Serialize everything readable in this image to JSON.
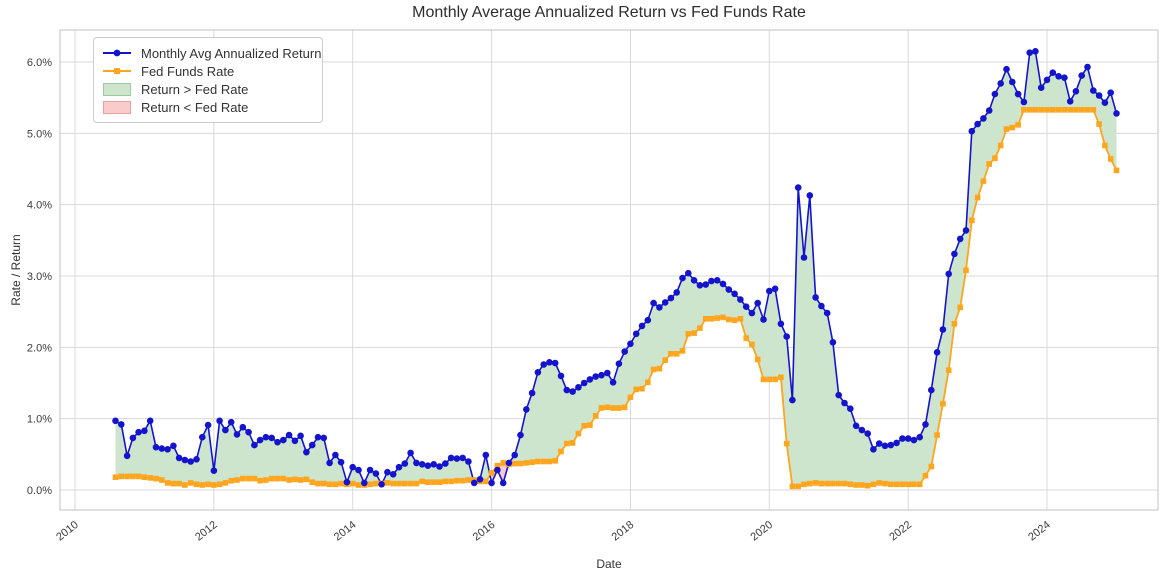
{
  "title": "Monthly Average Annualized Return vs Fed Funds Rate",
  "xlabel": "Date",
  "ylabel": "Rate / Return",
  "legend": {
    "items": [
      {
        "label": "Monthly Avg Annualized Return",
        "type": "line",
        "marker": "circle",
        "color": "#1414cc"
      },
      {
        "label": "Fed Funds Rate",
        "type": "line",
        "marker": "square",
        "color": "#ffa51e"
      },
      {
        "label": "Return > Fed Rate",
        "type": "patch",
        "fill": "#cde4cd",
        "edge": "#a3c9a3"
      },
      {
        "label": "Return < Fed Rate",
        "type": "patch",
        "fill": "#f9cbcb",
        "edge": "#e9a2a2"
      }
    ]
  },
  "colors": {
    "return_line": "#1414cc",
    "fed_funds_line": "#ffa51e",
    "fill_above": "#cde4cd",
    "fill_below": "#f9cbcb",
    "grid": "#d9d9d9",
    "frame": "#cccccc",
    "tick_text": "#3b3b3b",
    "background": "#ffffff"
  },
  "chart_data": {
    "type": "line",
    "title": "Monthly Average Annualized Return vs Fed Funds Rate",
    "xlabel": "Date",
    "ylabel": "Rate / Return",
    "x_unit": "month",
    "start": "2010-07",
    "end": "2024-12",
    "grid": true,
    "legend_position": "upper left",
    "ylim": [
      -0.28,
      6.45
    ],
    "yticks": [
      "0.0%",
      "1.0%",
      "2.0%",
      "3.0%",
      "4.0%",
      "5.0%",
      "6.0%"
    ],
    "ytick_values": [
      0,
      1,
      2,
      3,
      4,
      5,
      6
    ],
    "xticks": [
      "2010",
      "2012",
      "2014",
      "2016",
      "2018",
      "2020",
      "2022",
      "2024"
    ],
    "xtick_values": [
      2010,
      2012,
      2014,
      2016,
      2018,
      2020,
      2022,
      2024
    ],
    "fills": [
      {
        "label": "Return > Fed Rate",
        "condition": "return > fed_rate",
        "color": "#cde4cd"
      },
      {
        "label": "Return < Fed Rate",
        "condition": "return < fed_rate",
        "color": "#f9cbcb"
      }
    ],
    "series": [
      {
        "name": "Monthly Avg Annualized Return",
        "color": "#1414cc",
        "marker": "circle",
        "unit": "%",
        "values": [
          0.97,
          0.92,
          0.48,
          0.73,
          0.81,
          0.83,
          0.97,
          0.6,
          0.58,
          0.57,
          0.62,
          0.45,
          0.42,
          0.4,
          0.43,
          0.74,
          0.91,
          0.27,
          0.97,
          0.84,
          0.95,
          0.78,
          0.88,
          0.81,
          0.63,
          0.7,
          0.74,
          0.73,
          0.67,
          0.7,
          0.77,
          0.69,
          0.76,
          0.53,
          0.63,
          0.74,
          0.73,
          0.38,
          0.49,
          0.39,
          0.11,
          0.32,
          0.28,
          0.1,
          0.28,
          0.23,
          0.08,
          0.25,
          0.22,
          0.32,
          0.37,
          0.52,
          0.38,
          0.36,
          0.34,
          0.36,
          0.33,
          0.37,
          0.45,
          0.44,
          0.45,
          0.4,
          0.1,
          0.15,
          0.49,
          0.1,
          0.28,
          0.1,
          0.38,
          0.49,
          0.77,
          1.13,
          1.36,
          1.65,
          1.76,
          1.79,
          1.78,
          1.6,
          1.4,
          1.38,
          1.44,
          1.5,
          1.55,
          1.59,
          1.61,
          1.64,
          1.51,
          1.77,
          1.94,
          2.05,
          2.19,
          2.3,
          2.38,
          2.62,
          2.56,
          2.63,
          2.69,
          2.77,
          2.97,
          3.04,
          2.94,
          2.87,
          2.88,
          2.93,
          2.94,
          2.89,
          2.81,
          2.75,
          2.67,
          2.57,
          2.48,
          2.62,
          2.39,
          2.79,
          2.82,
          2.33,
          2.15,
          1.26,
          4.24,
          3.26,
          4.13,
          2.7,
          2.58,
          2.48,
          2.07,
          1.33,
          1.22,
          1.14,
          0.9,
          0.84,
          0.79,
          0.57,
          0.65,
          0.62,
          0.63,
          0.66,
          0.72,
          0.72,
          0.7,
          0.74,
          0.92,
          1.4,
          1.93,
          2.25,
          3.03,
          3.31,
          3.52,
          3.64,
          5.03,
          5.13,
          5.21,
          5.32,
          5.55,
          5.7,
          5.9,
          5.72,
          5.55,
          5.44,
          6.13,
          6.15,
          5.64,
          5.75,
          5.85,
          5.8,
          5.78,
          5.45,
          5.59,
          5.81,
          5.93,
          5.6,
          5.53,
          5.43,
          5.57,
          5.28
        ]
      },
      {
        "name": "Fed Funds Rate",
        "color": "#ffa51e",
        "marker": "square",
        "unit": "%",
        "values": [
          0.18,
          0.19,
          0.19,
          0.19,
          0.19,
          0.18,
          0.17,
          0.16,
          0.14,
          0.1,
          0.09,
          0.09,
          0.07,
          0.1,
          0.08,
          0.07,
          0.08,
          0.07,
          0.08,
          0.1,
          0.13,
          0.14,
          0.16,
          0.16,
          0.16,
          0.13,
          0.14,
          0.16,
          0.16,
          0.16,
          0.14,
          0.15,
          0.14,
          0.15,
          0.11,
          0.09,
          0.09,
          0.08,
          0.08,
          0.09,
          0.08,
          0.09,
          0.07,
          0.07,
          0.08,
          0.09,
          0.09,
          0.1,
          0.09,
          0.09,
          0.09,
          0.09,
          0.09,
          0.12,
          0.11,
          0.11,
          0.11,
          0.12,
          0.12,
          0.13,
          0.13,
          0.14,
          0.14,
          0.12,
          0.12,
          0.24,
          0.34,
          0.38,
          0.36,
          0.37,
          0.37,
          0.38,
          0.39,
          0.4,
          0.4,
          0.4,
          0.41,
          0.54,
          0.65,
          0.66,
          0.79,
          0.9,
          0.91,
          1.04,
          1.15,
          1.16,
          1.15,
          1.15,
          1.16,
          1.3,
          1.41,
          1.42,
          1.51,
          1.69,
          1.7,
          1.82,
          1.91,
          1.91,
          1.95,
          2.19,
          2.2,
          2.27,
          2.4,
          2.4,
          2.41,
          2.42,
          2.39,
          2.38,
          2.4,
          2.13,
          2.04,
          1.83,
          1.55,
          1.55,
          1.55,
          1.58,
          0.65,
          0.05,
          0.05,
          0.08,
          0.09,
          0.1,
          0.09,
          0.09,
          0.09,
          0.09,
          0.09,
          0.08,
          0.07,
          0.07,
          0.06,
          0.08,
          0.1,
          0.09,
          0.08,
          0.08,
          0.08,
          0.08,
          0.08,
          0.08,
          0.2,
          0.33,
          0.77,
          1.21,
          1.68,
          2.33,
          2.56,
          3.08,
          3.78,
          4.1,
          4.33,
          4.57,
          4.65,
          4.83,
          5.06,
          5.08,
          5.12,
          5.33,
          5.33,
          5.33,
          5.33,
          5.33,
          5.33,
          5.33,
          5.33,
          5.33,
          5.33,
          5.33,
          5.33,
          5.33,
          5.13,
          4.83,
          4.64,
          4.48
        ]
      }
    ]
  }
}
